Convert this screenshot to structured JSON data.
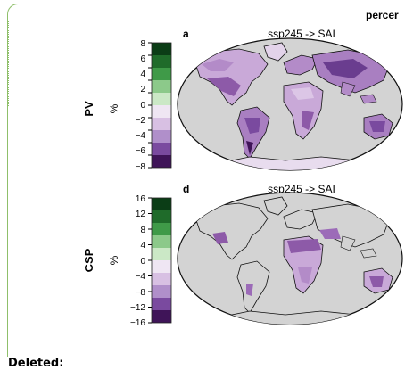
{
  "header_text": "percer",
  "deleted_label": "Deleted:",
  "colors": {
    "frame": "#8fbf6a",
    "ocean": "#d3d3d3",
    "coast": "#111111",
    "pos_palette": [
      "#1a4d20",
      "#2e7d32",
      "#66bb6a",
      "#a5d6a7"
    ],
    "neutral_palette": [
      "#e8f5e9",
      "#f3e5f5"
    ],
    "neg_palette": [
      "#d1b3de",
      "#9c6bb8",
      "#6a3d8f",
      "#3d1a5c"
    ]
  },
  "panels": [
    {
      "id": "pv",
      "letter": "a",
      "title": "ssp245 -> SAI",
      "variable": "PV",
      "unit": "%",
      "ticks": [
        "8",
        "6",
        "4",
        "2",
        "0",
        "−2",
        "−4",
        "−6",
        "−8"
      ]
    },
    {
      "id": "csp",
      "letter": "d",
      "title": "ssp245 -> SAI",
      "variable": "CSP",
      "unit": "%",
      "ticks": [
        "16",
        "12",
        "8",
        "4",
        "0",
        "−4",
        "−8",
        "−12",
        "−16"
      ]
    }
  ]
}
